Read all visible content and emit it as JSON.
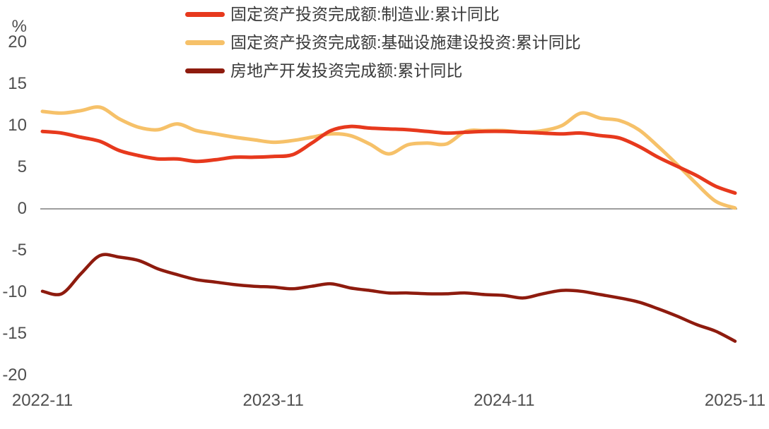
{
  "chart_data": {
    "type": "line",
    "title": "",
    "unit_label": "%",
    "grid": false,
    "legend_position": "top-center",
    "ylim": [
      -20,
      20
    ],
    "axis_line_color": "#7f7f7f",
    "tick_text_color": "#4f4f4f",
    "x_months": [
      "2022-11",
      "2022-12",
      "2023-01",
      "2023-02",
      "2023-03",
      "2023-04",
      "2023-05",
      "2023-06",
      "2023-07",
      "2023-08",
      "2023-09",
      "2023-10",
      "2023-11",
      "2023-12",
      "2024-01",
      "2024-02",
      "2024-03",
      "2024-04",
      "2024-05",
      "2024-06",
      "2024-07",
      "2024-08",
      "2024-09",
      "2024-10",
      "2024-11",
      "2024-12",
      "2025-01",
      "2025-02",
      "2025-03",
      "2025-04",
      "2025-05",
      "2025-06",
      "2025-07",
      "2025-08",
      "2025-09",
      "2025-10",
      "2025-11"
    ],
    "x_ticks": [
      {
        "index": 0,
        "label": "2022-11"
      },
      {
        "index": 12,
        "label": "2023-11"
      },
      {
        "index": 24,
        "label": "2024-11"
      },
      {
        "index": 36,
        "label": "2025-11"
      }
    ],
    "y_ticks": [
      {
        "value": 20,
        "label": "20"
      },
      {
        "value": 15,
        "label": "15"
      },
      {
        "value": 10,
        "label": "10"
      },
      {
        "value": 5,
        "label": "5"
      },
      {
        "value": 0,
        "label": "0"
      },
      {
        "value": -5,
        "label": "-5"
      },
      {
        "value": -10,
        "label": "-10"
      },
      {
        "value": -15,
        "label": "-15"
      },
      {
        "value": -20,
        "label": "-20"
      }
    ],
    "series": [
      {
        "name": "固定资产投资完成额:制造业:累计同比",
        "color": "#e7391d",
        "line_width": 5,
        "values": [
          9.3,
          9.1,
          8.6,
          8.1,
          7.0,
          6.4,
          6.0,
          6.0,
          5.7,
          5.9,
          6.2,
          6.2,
          6.3,
          6.5,
          7.9,
          9.4,
          9.9,
          9.7,
          9.6,
          9.5,
          9.3,
          9.1,
          9.2,
          9.3,
          9.3,
          9.2,
          9.1,
          9.0,
          9.1,
          8.8,
          8.5,
          7.5,
          6.2,
          5.1,
          4.0,
          2.7,
          1.9
        ]
      },
      {
        "name": "固定资产投资完成额:基础设施建设投资:累计同比",
        "color": "#f6c169",
        "line_width": 5,
        "values": [
          11.7,
          11.5,
          11.8,
          12.2,
          10.8,
          9.8,
          9.5,
          10.2,
          9.4,
          9.0,
          8.6,
          8.3,
          8.0,
          8.2,
          8.6,
          9.0,
          8.8,
          7.8,
          6.6,
          7.7,
          7.9,
          7.8,
          9.3,
          9.4,
          9.4,
          9.2,
          9.4,
          10.0,
          11.5,
          10.9,
          10.6,
          9.5,
          7.5,
          5.3,
          3.0,
          0.9,
          0.1
        ]
      },
      {
        "name": "房地产开发投资完成额:累计同比",
        "color": "#8e1b0e",
        "line_width": 4.5,
        "values": [
          -9.9,
          -10.2,
          -7.8,
          -5.6,
          -5.8,
          -6.2,
          -7.2,
          -7.9,
          -8.5,
          -8.8,
          -9.1,
          -9.3,
          -9.4,
          -9.6,
          -9.3,
          -9.0,
          -9.5,
          -9.8,
          -10.1,
          -10.1,
          -10.2,
          -10.2,
          -10.1,
          -10.3,
          -10.4,
          -10.7,
          -10.2,
          -9.8,
          -9.9,
          -10.3,
          -10.7,
          -11.2,
          -12.0,
          -12.9,
          -13.9,
          -14.7,
          -15.9
        ]
      }
    ]
  }
}
